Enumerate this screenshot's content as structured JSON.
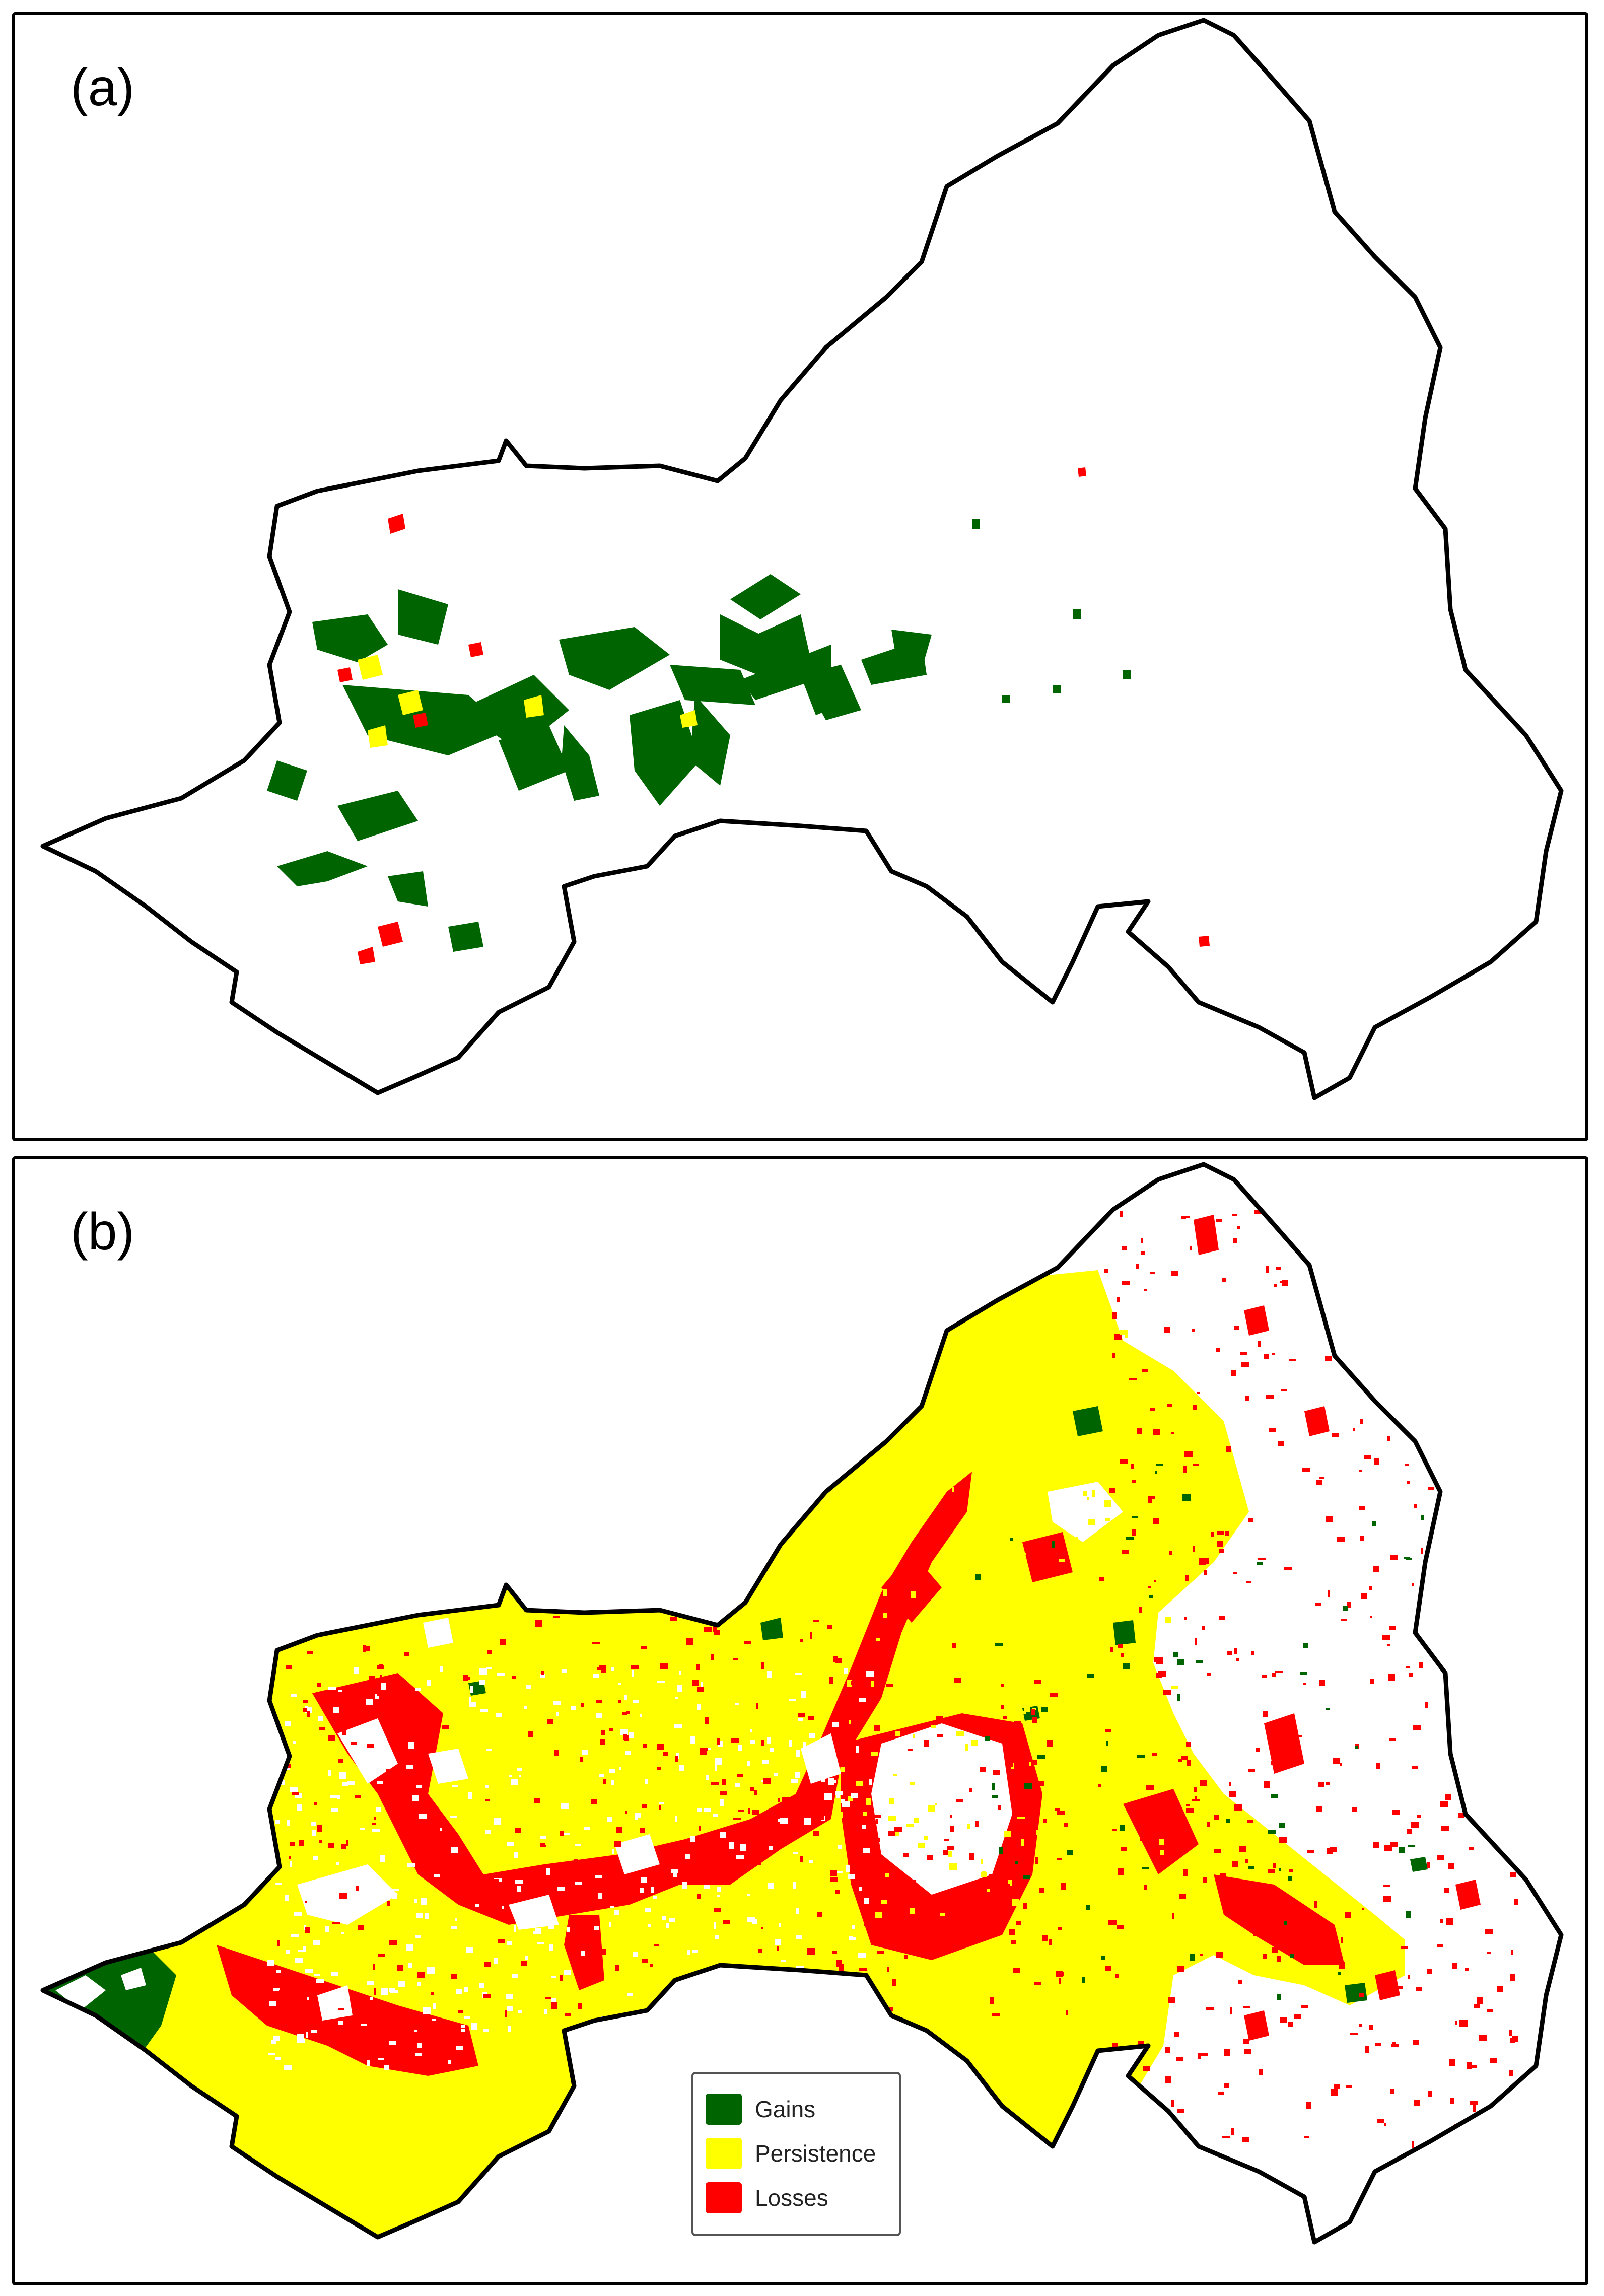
{
  "figure": {
    "panels": [
      {
        "label": "(a)",
        "dominant_class": "Gains",
        "summary": "Few changes; gains concentrated in western and central ridges, scattered losses and persistence"
      },
      {
        "label": "(b)",
        "dominant_class": "Persistence",
        "summary": "Persistence covers most of the western and central basin; losses along valley networks; gains mainly at the far western tip; eastern basin largely unchanged"
      }
    ],
    "legend": {
      "items": [
        {
          "label": "Gains",
          "color": "#006400"
        },
        {
          "label": "Persistence",
          "color": "#ffff00"
        },
        {
          "label": "Losses",
          "color": "#ff0000"
        }
      ]
    },
    "colors": {
      "border": "#000000",
      "background": "#ffffff",
      "no_change": "#ffffff"
    }
  }
}
